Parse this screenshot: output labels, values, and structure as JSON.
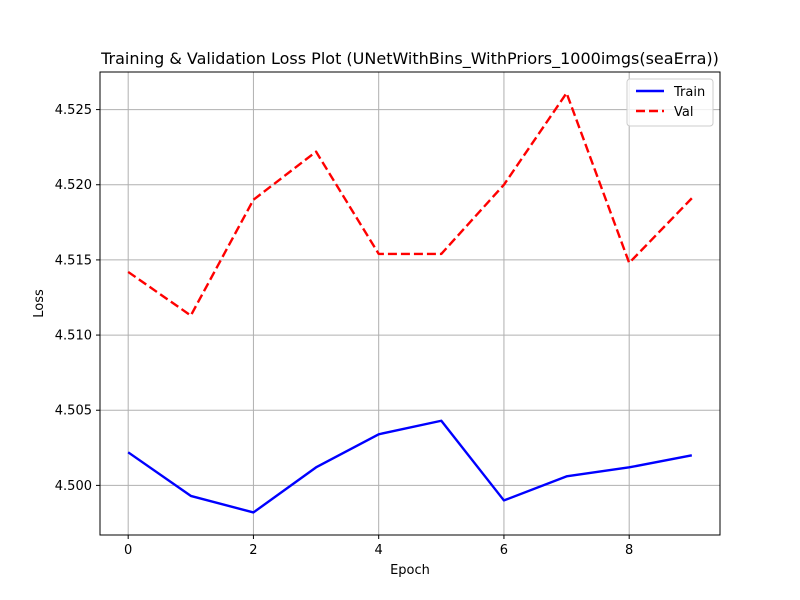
{
  "chart_data": {
    "type": "line",
    "title": "Training & Validation Loss Plot (UNetWithBins_WithPriors_1000imgs(seaErra))",
    "xlabel": "Epoch",
    "ylabel": "Loss",
    "xlim": [
      -0.45,
      9.45
    ],
    "ylim": [
      4.4967,
      4.5275
    ],
    "xticks": [
      0,
      2,
      4,
      6,
      8
    ],
    "yticks": [
      4.5,
      4.505,
      4.51,
      4.515,
      4.52,
      4.525
    ],
    "ytick_labels": [
      "4.500",
      "4.505",
      "4.510",
      "4.515",
      "4.520",
      "4.525"
    ],
    "grid": true,
    "legend_position": "top-right",
    "x": [
      0,
      1,
      2,
      3,
      4,
      5,
      6,
      7,
      8,
      9
    ],
    "series": [
      {
        "name": "Train",
        "color": "#0000ff",
        "style": "solid",
        "values": [
          4.5022,
          4.4993,
          4.4982,
          4.5012,
          4.5034,
          4.5043,
          4.499,
          4.5006,
          4.5012,
          4.502
        ]
      },
      {
        "name": "Val",
        "color": "#ff0000",
        "style": "dashed",
        "values": [
          4.5142,
          4.5113,
          4.519,
          4.5222,
          4.5154,
          4.5154,
          4.52,
          4.5261,
          4.5148,
          4.5191
        ]
      }
    ]
  }
}
